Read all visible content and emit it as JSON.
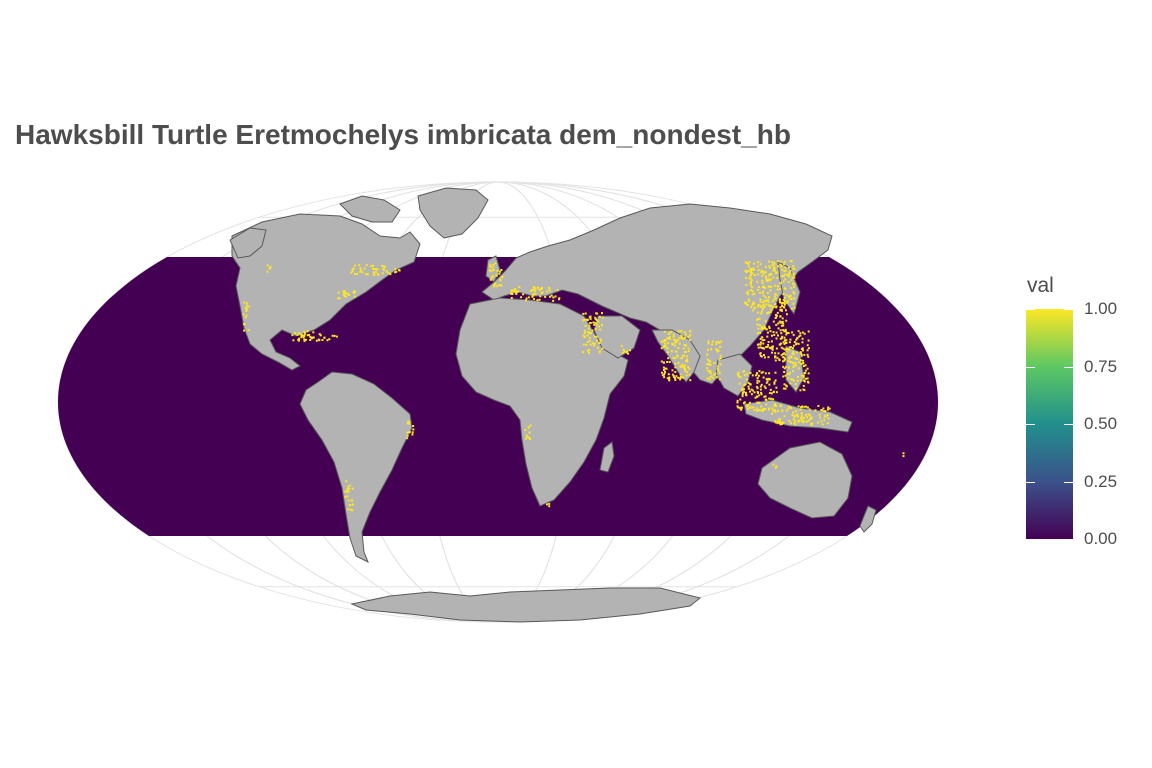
{
  "title": "Hawksbill Turtle Eretmochelys imbricata dem_nondest_hb",
  "map": {
    "projection": "Mollweide",
    "ocean_color": "#440154",
    "land_color": "#b3b3b3",
    "land_border_color": "#595959",
    "graticule_color": "#e3e3e3",
    "highlight_color": "#fde725"
  },
  "legend": {
    "title": "val",
    "ticks": [
      "1.00",
      "0.75",
      "0.50",
      "0.25",
      "0.00"
    ],
    "tick_values": [
      1.0,
      0.75,
      0.5,
      0.25,
      0.0
    ],
    "colors": [
      "#440154",
      "#3b528b",
      "#21908c",
      "#5dc863",
      "#fde725"
    ]
  }
}
